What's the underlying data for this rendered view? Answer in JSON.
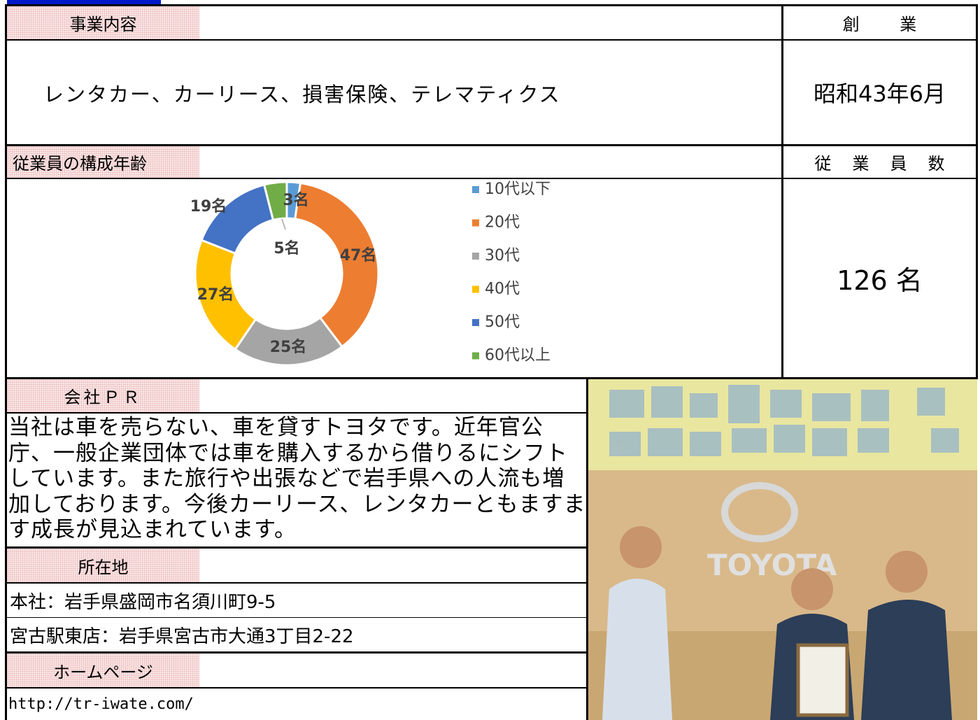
{
  "business": {
    "label": "事業内容",
    "content": "レンタカー、カーリース、損害保険、テレマティクス"
  },
  "founded": {
    "label": "創業",
    "value": "昭和43年6月"
  },
  "employees": {
    "label": "従業員数",
    "value": "126 名"
  },
  "chart_data": {
    "type": "donut",
    "title": "従業員の構成年齢",
    "categories": [
      "10代以下",
      "20代",
      "30代",
      "40代",
      "50代",
      "60代以上"
    ],
    "values": [
      3,
      47,
      25,
      27,
      19,
      5
    ],
    "value_labels": [
      "3名",
      "47名",
      "25名",
      "27名",
      "19名",
      "5名"
    ],
    "colors": [
      "#5b9bd5",
      "#ed7d31",
      "#a5a5a5",
      "#ffc000",
      "#4472c4",
      "#70ad47"
    ]
  },
  "pr": {
    "label": "会社ＰＲ",
    "text": "当社は車を売らない、車を貸すトヨタです。近年官公庁、一般企業団体では車を購入するから借りるにシフトしています。また旅行や出張などで岩手県への人流も増加しております。今後カーリース、レンタカーともますます成長が見込まれています。"
  },
  "location": {
    "label": "所在地",
    "lines": [
      "本社：岩手県盛岡市名須川町9-5",
      "宮古駅東店：岩手県宮古市大通3丁目2-22"
    ]
  },
  "homepage": {
    "label": "ホームページ",
    "url": "http://tr-iwate.com/"
  }
}
